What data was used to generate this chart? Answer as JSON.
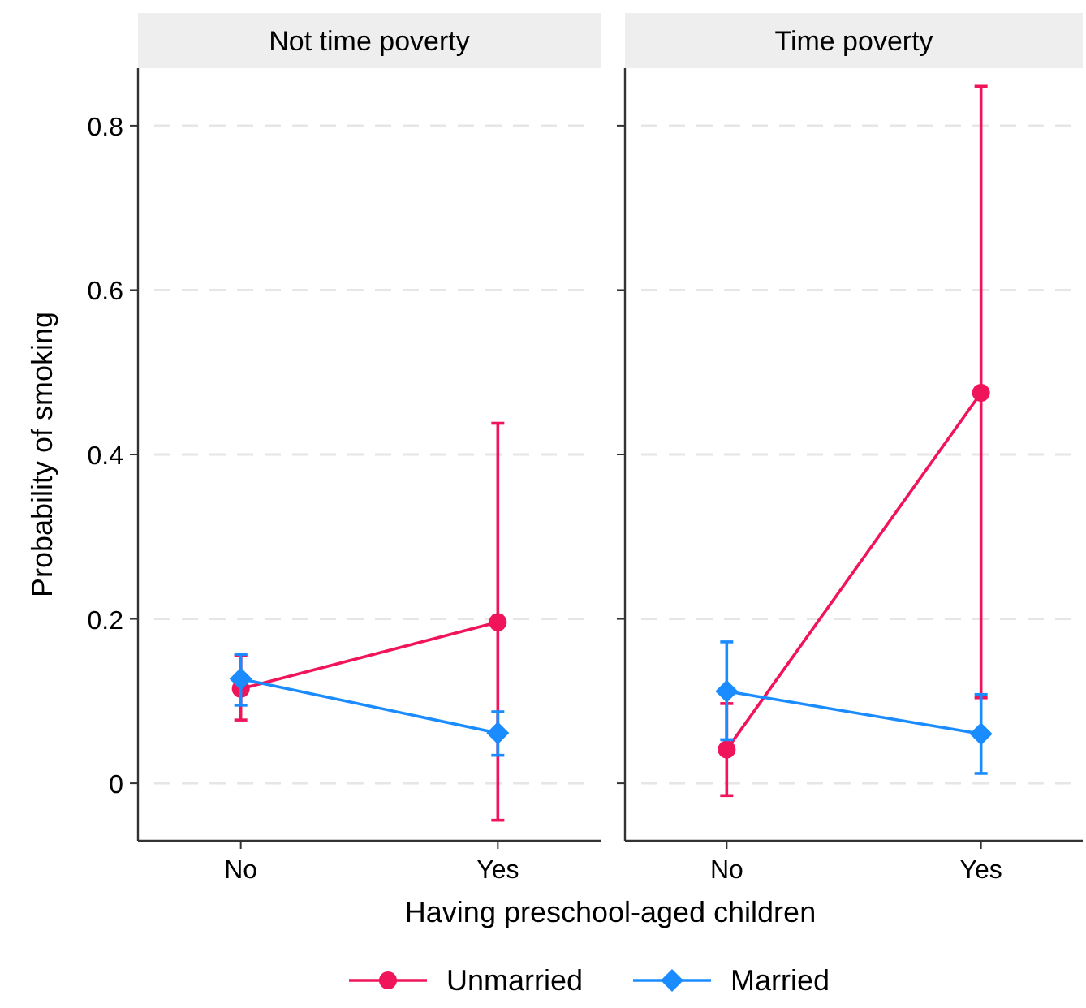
{
  "chart_data": [
    {
      "type": "line",
      "title": "Not time poverty",
      "ylabel": "Probability of smoking",
      "xlabel": "Having preschool-aged children",
      "categories": [
        "No",
        "Yes"
      ],
      "ylim": [
        -0.07,
        0.87
      ],
      "yticks": [
        0,
        0.2,
        0.4,
        0.6,
        0.8
      ],
      "grid": "y",
      "legend": "bottom",
      "series": [
        {
          "name": "Unmarried",
          "color": "#f0145a",
          "marker": "circle",
          "values": [
            0.115,
            0.196
          ],
          "errors": [
            [
              0.077,
              0.155
            ],
            [
              -0.045,
              0.438
            ]
          ]
        },
        {
          "name": "Married",
          "color": "#1a8cff",
          "marker": "diamond",
          "values": [
            0.127,
            0.061
          ],
          "errors": [
            [
              0.095,
              0.157
            ],
            [
              0.034,
              0.087
            ]
          ]
        }
      ]
    },
    {
      "type": "line",
      "title": "Time poverty",
      "categories": [
        "No",
        "Yes"
      ],
      "ylim": [
        -0.07,
        0.87
      ],
      "yticks": [
        0,
        0.2,
        0.4,
        0.6,
        0.8
      ],
      "grid": "y",
      "tick_labels": "x",
      "series": [
        {
          "color": "#f0145a",
          "marker": "circle",
          "values": [
            0.041,
            0.475
          ],
          "errors": [
            [
              -0.015,
              0.097
            ],
            [
              0.104,
              0.848
            ]
          ]
        },
        {
          "color": "#1a8cff",
          "marker": "diamond",
          "values": [
            0.112,
            0.06
          ],
          "errors": [
            [
              0.053,
              0.172
            ],
            [
              0.012,
              0.108
            ]
          ]
        }
      ]
    }
  ]
}
